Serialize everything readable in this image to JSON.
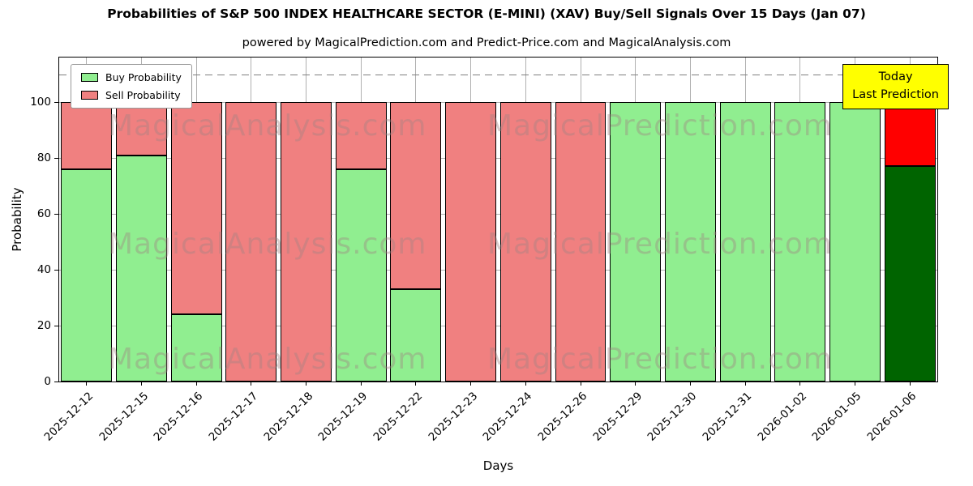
{
  "chart_data": {
    "type": "bar",
    "stacked": true,
    "title": "Probabilities of S&P 500 INDEX HEALTHCARE SECTOR (E-MINI) (XAV) Buy/Sell Signals Over 15 Days (Jan 07)",
    "subtitle": "powered by MagicalPrediction.com and Predict-Price.com and MagicalAnalysis.com",
    "xlabel": "Days",
    "ylabel": "Probability",
    "ylim": [
      0,
      116
    ],
    "yticks": [
      0,
      20,
      40,
      60,
      80,
      100
    ],
    "grid": true,
    "dashed_line_y": 110,
    "categories": [
      "2025-12-12",
      "2025-12-15",
      "2025-12-16",
      "2025-12-17",
      "2025-12-18",
      "2025-12-19",
      "2025-12-22",
      "2025-12-23",
      "2025-12-24",
      "2025-12-26",
      "2025-12-29",
      "2025-12-30",
      "2025-12-31",
      "2026-01-02",
      "2026-01-05",
      "2026-01-06"
    ],
    "series": [
      {
        "name": "Buy Probability",
        "color": "#90EE90",
        "values": [
          76,
          81,
          24,
          0,
          0,
          76,
          33,
          0,
          0,
          0,
          100,
          100,
          100,
          100,
          100,
          77
        ]
      },
      {
        "name": "Sell Probability",
        "color": "#F08080",
        "values": [
          24,
          19,
          76,
          100,
          100,
          24,
          67,
          100,
          100,
          100,
          0,
          0,
          0,
          0,
          0,
          23
        ]
      }
    ],
    "last_bar_colors": {
      "buy": "#006400",
      "sell": "#FF0000"
    },
    "bar_edge_color": "#000000",
    "legend_position": "top-left",
    "annotation": {
      "line1": "Today",
      "line2": "Last Prediction",
      "bg_color": "#FFFF00"
    },
    "watermarks": [
      "MagicalAnalysis.com",
      "MagicalPrediction.com"
    ]
  }
}
